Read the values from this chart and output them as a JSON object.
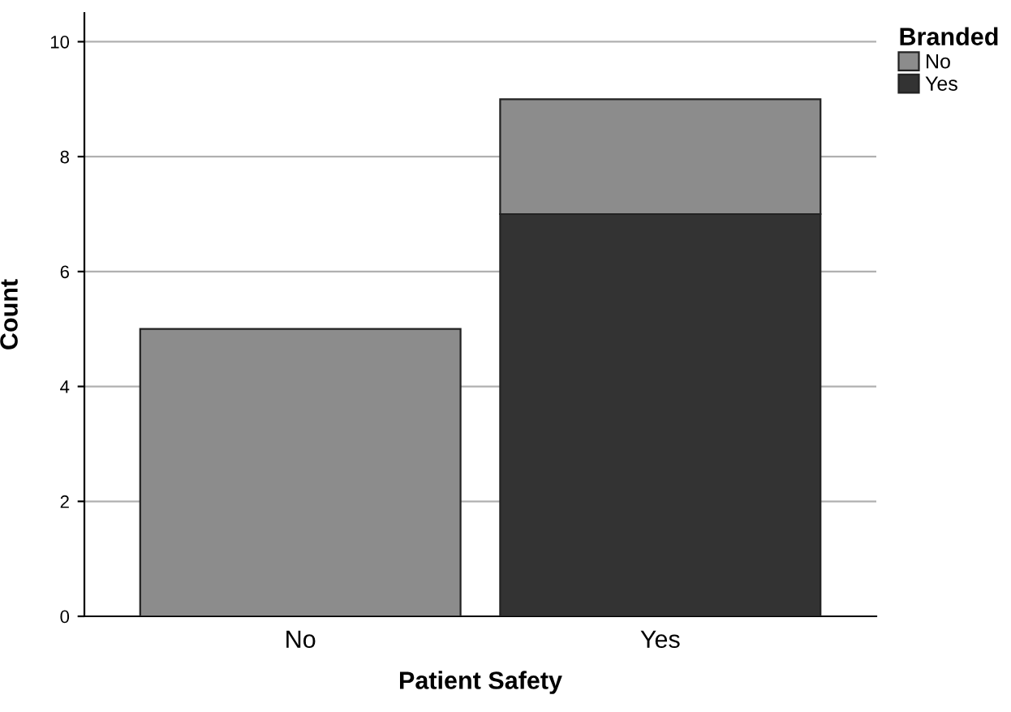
{
  "chart_data": {
    "type": "bar",
    "stacked": true,
    "xlabel": "Patient Safety",
    "ylabel": "Count",
    "legend_title": "Branded",
    "categories": [
      "No",
      "Yes"
    ],
    "series": [
      {
        "name": "Yes",
        "color": "#333333",
        "values": [
          0,
          7
        ]
      },
      {
        "name": "No",
        "color": "#8c8c8c",
        "values": [
          5,
          2
        ]
      }
    ],
    "ylim": [
      0,
      10.5
    ],
    "yticks": [
      0,
      2,
      4,
      6,
      8,
      10
    ],
    "grid": "y",
    "legend": "top right"
  }
}
